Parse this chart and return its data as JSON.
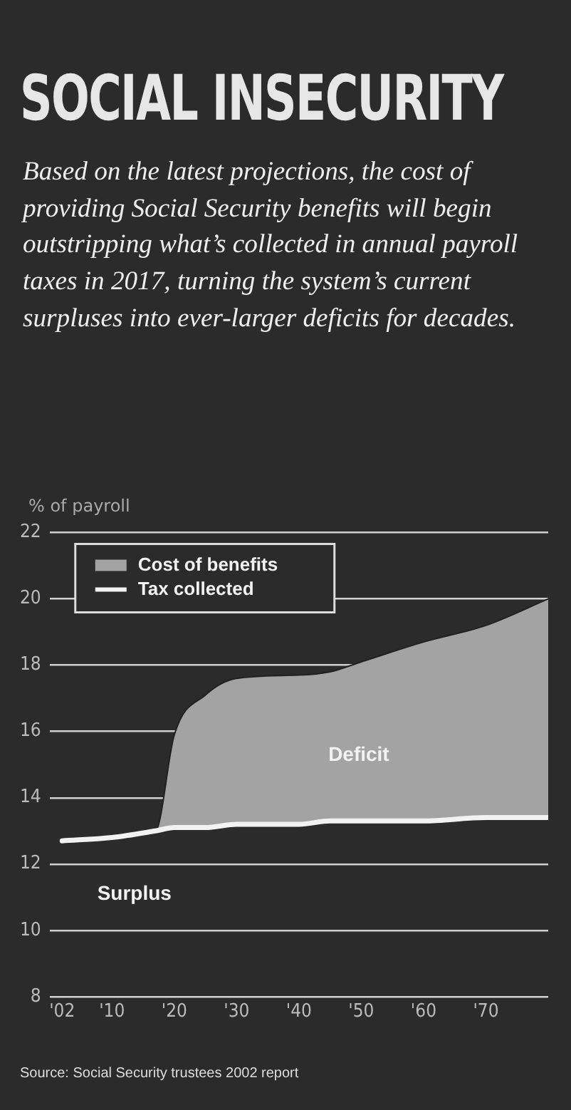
{
  "chart_data": {
    "type": "line",
    "title": "SOCIAL INSECURITY",
    "subtitle": "Based on the latest projections, the cost of providing Social Security benefits will begin outstripping what’s collected in annual payroll taxes in 2017, turning the system’s current surpluses into ever-larger deficits for decades.",
    "ylabel": "% of payroll",
    "x": [
      2002,
      2010,
      2017,
      2020,
      2025,
      2030,
      2040,
      2045,
      2050,
      2060,
      2070,
      2080
    ],
    "series": [
      {
        "name": "Cost of benefits",
        "type": "area",
        "color": "#a3a3a3",
        "values": [
          12.7,
          12.8,
          13.0,
          15.9,
          17.1,
          17.6,
          17.7,
          17.8,
          18.1,
          18.7,
          19.2,
          20.0
        ]
      },
      {
        "name": "Tax collected",
        "type": "line",
        "color": "#f2f2f2",
        "values": [
          12.7,
          12.8,
          13.0,
          13.1,
          13.1,
          13.2,
          13.2,
          13.3,
          13.3,
          13.3,
          13.4,
          13.4
        ]
      }
    ],
    "xlim": [
      2000,
      2080
    ],
    "xticks": [
      {
        "value": 2002,
        "label": "'02"
      },
      {
        "value": 2010,
        "label": "'10"
      },
      {
        "value": 2020,
        "label": "'20"
      },
      {
        "value": 2030,
        "label": "'30"
      },
      {
        "value": 2040,
        "label": "'40"
      },
      {
        "value": 2050,
        "label": "'50"
      },
      {
        "value": 2060,
        "label": "'60"
      },
      {
        "value": 2070,
        "label": "'70"
      }
    ],
    "ylim": [
      8,
      22
    ],
    "yticks": [
      8,
      10,
      12,
      14,
      16,
      18,
      20,
      22
    ],
    "grid": "y",
    "legend": "top left",
    "marker": "none",
    "annotations": [
      "Deficit",
      "Surplus",
      "Source: Social Security trustees 2002 report"
    ]
  }
}
